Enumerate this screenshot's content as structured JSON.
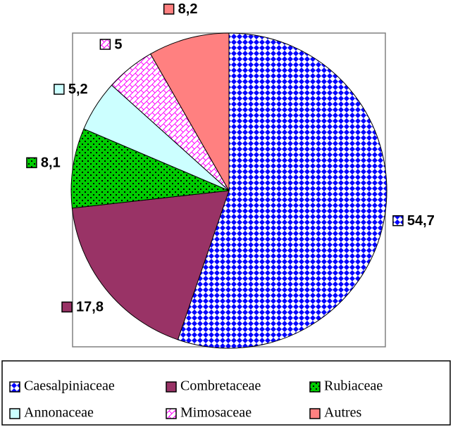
{
  "chart_data": {
    "type": "pie",
    "categories": [
      "Caesalpiniaceae",
      "Combretaceae",
      "Rubiaceae",
      "Annonaceae",
      "Mimosaceae",
      "Autres"
    ],
    "values": [
      54.7,
      17.8,
      8.1,
      5.2,
      5,
      8.2
    ],
    "value_labels": [
      "54,7",
      "17,8",
      "8,1",
      "5,2",
      "5",
      "8,2"
    ],
    "colors": [
      "#0000ff",
      "#993366",
      "#00cc00",
      "#ccffff",
      "#ff00ff",
      "#ff8080"
    ],
    "fill_styles": [
      "diamonds",
      "solid",
      "checker",
      "solid",
      "brick",
      "solid"
    ],
    "start_angle": 0,
    "direction": "clockwise",
    "legend": "bottom"
  }
}
